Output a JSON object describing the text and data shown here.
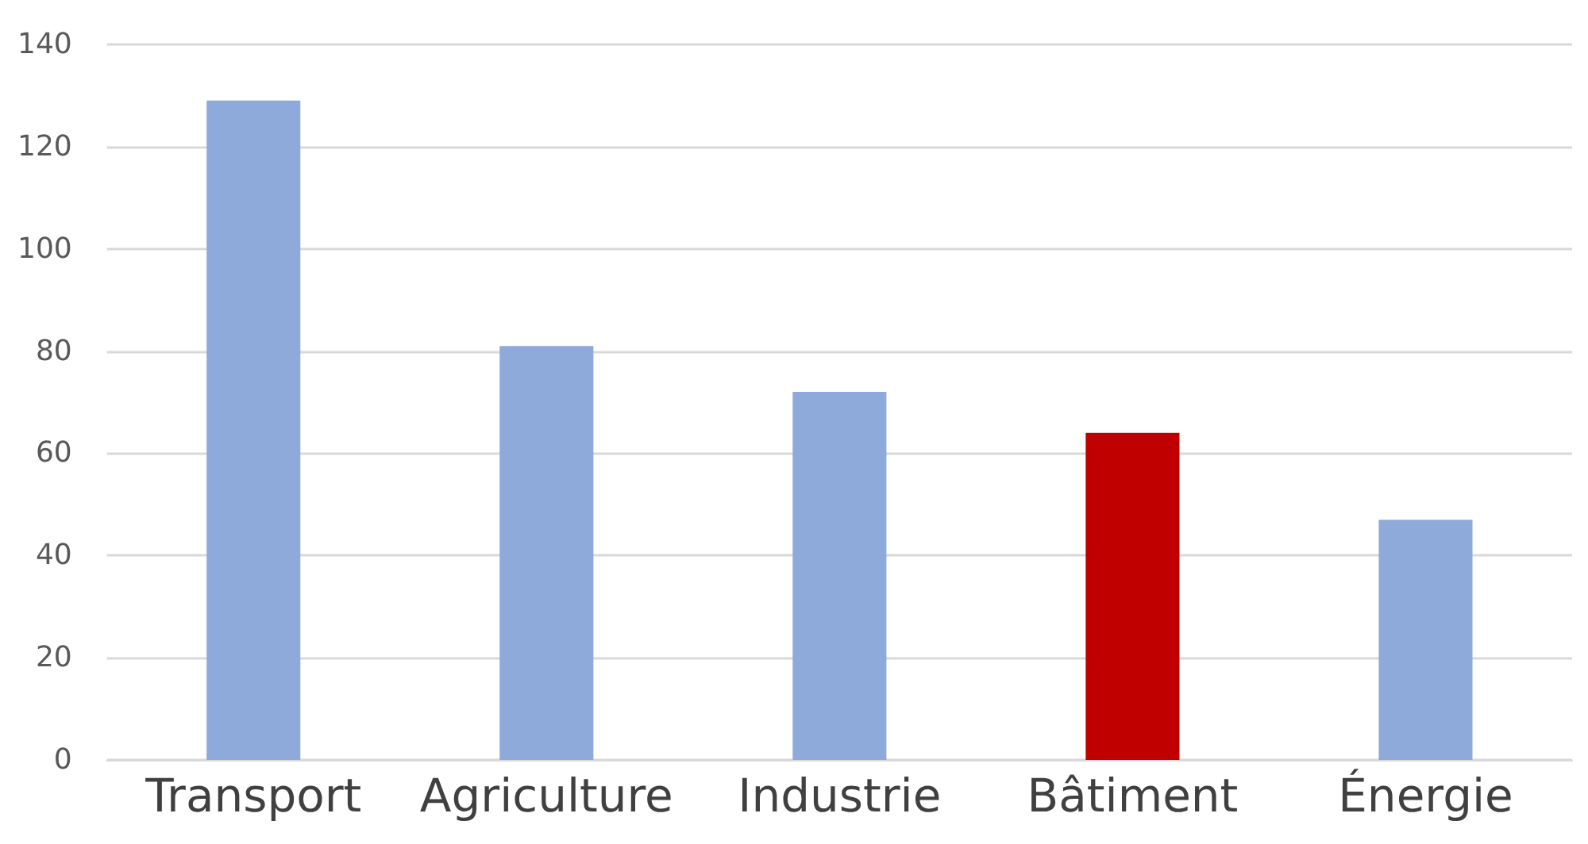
{
  "chart_data": {
    "type": "bar",
    "categories": [
      "Transport",
      "Agriculture",
      "Industrie",
      "Bâtiment",
      "Énergie"
    ],
    "values": [
      129,
      81,
      72,
      64,
      47
    ],
    "colors": [
      "#8eaadb",
      "#8eaadb",
      "#8eaadb",
      "#c00000",
      "#8eaadb"
    ],
    "ylim": [
      0,
      140
    ],
    "yticks": [
      0,
      20,
      40,
      60,
      80,
      100,
      120,
      140
    ],
    "grid": "y"
  }
}
